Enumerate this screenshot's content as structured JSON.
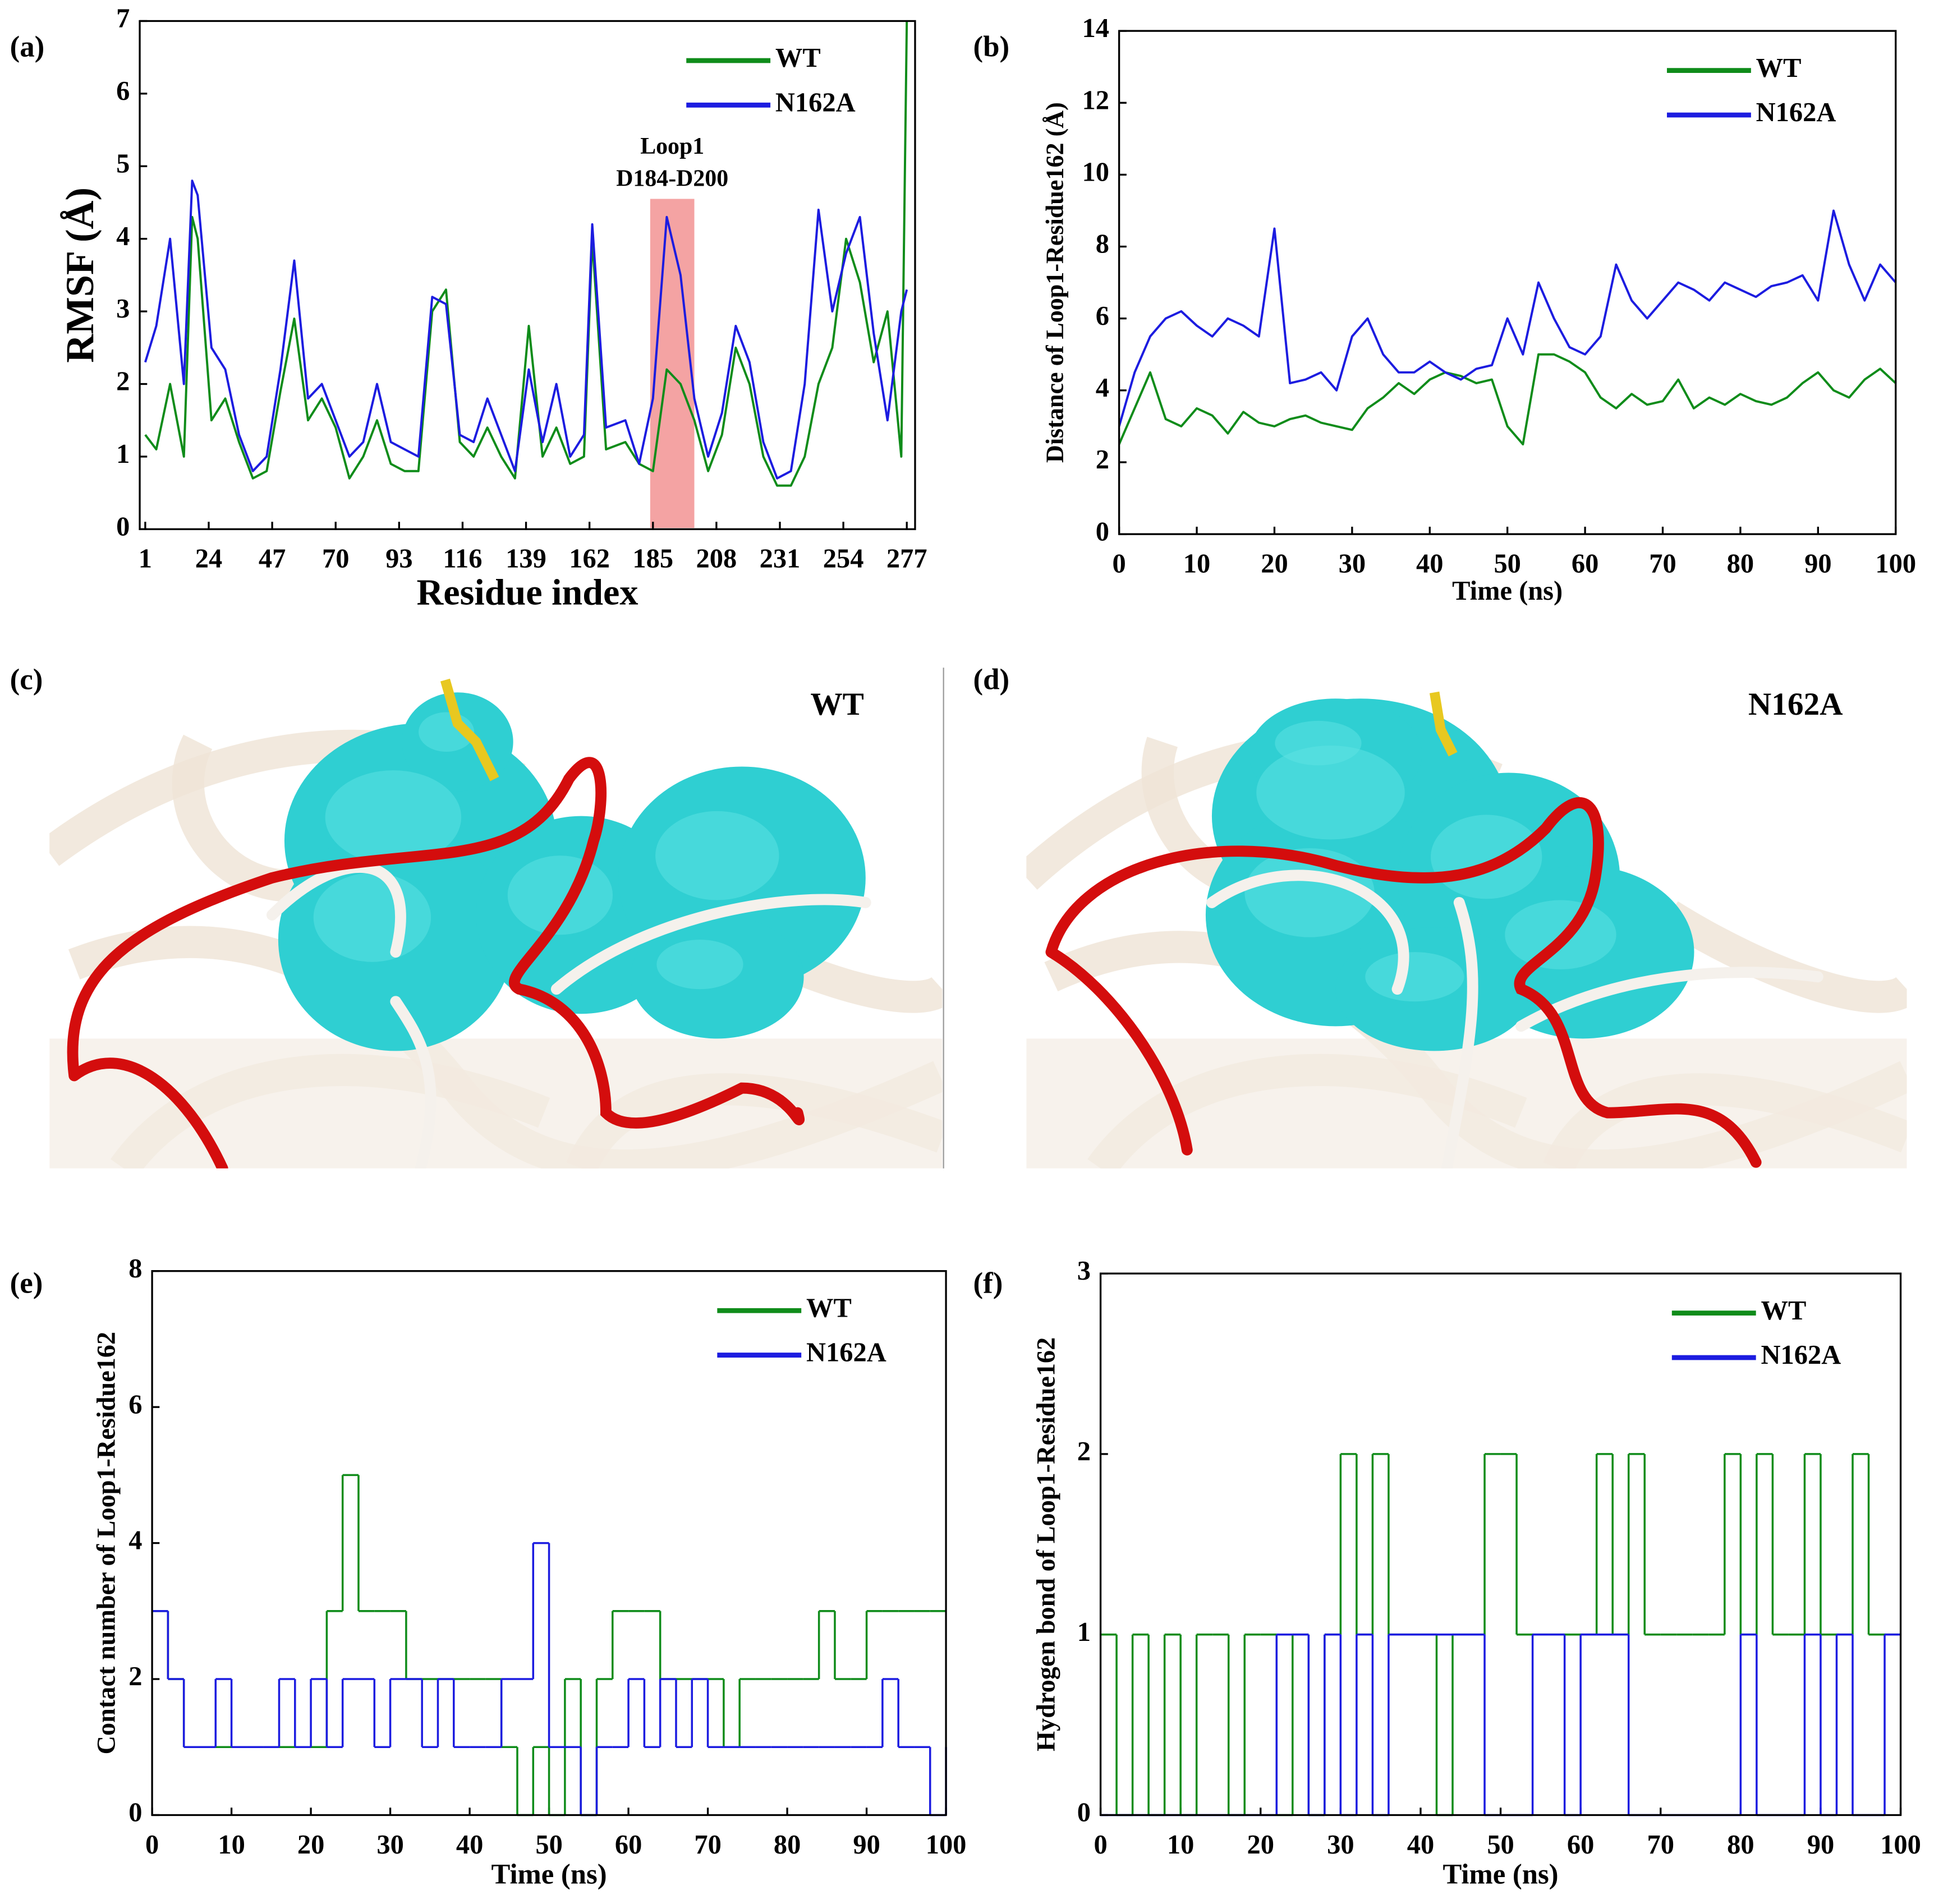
{
  "chart_data": [
    {
      "type": "line",
      "label": "(a)",
      "xlabel": "Residue index",
      "ylabel": "RMSF (Å)",
      "x": [
        1,
        5,
        10,
        15,
        18,
        20,
        25,
        30,
        35,
        40,
        45,
        50,
        55,
        60,
        65,
        70,
        75,
        80,
        85,
        90,
        95,
        100,
        105,
        110,
        115,
        120,
        125,
        130,
        135,
        140,
        145,
        150,
        155,
        160,
        163,
        168,
        175,
        180,
        185,
        190,
        195,
        200,
        205,
        210,
        215,
        220,
        225,
        230,
        235,
        240,
        245,
        250,
        255,
        260,
        265,
        270,
        275,
        277
      ],
      "series": [
        {
          "name": "WT",
          "color": "#0f8c1a",
          "values": [
            1.3,
            1.1,
            2.0,
            1.0,
            4.3,
            4.0,
            1.5,
            1.8,
            1.2,
            0.7,
            0.8,
            1.9,
            2.9,
            1.5,
            1.8,
            1.4,
            0.7,
            1.0,
            1.5,
            0.9,
            0.8,
            0.8,
            3.0,
            3.3,
            1.2,
            1.0,
            1.4,
            1.0,
            0.7,
            2.8,
            1.0,
            1.4,
            0.9,
            1.0,
            4.0,
            1.1,
            1.2,
            0.9,
            0.8,
            2.2,
            2.0,
            1.5,
            0.8,
            1.3,
            2.5,
            2.0,
            1.0,
            0.6,
            0.6,
            1.0,
            2.0,
            2.5,
            4.0,
            3.4,
            2.3,
            3.0,
            1.0,
            7.0
          ]
        },
        {
          "name": "N162A",
          "color": "#1c1ce0",
          "values": [
            2.3,
            2.8,
            4.0,
            2.0,
            4.8,
            4.6,
            2.5,
            2.2,
            1.3,
            0.8,
            1.0,
            2.2,
            3.7,
            1.8,
            2.0,
            1.5,
            1.0,
            1.2,
            2.0,
            1.2,
            1.1,
            1.0,
            3.2,
            3.1,
            1.3,
            1.2,
            1.8,
            1.3,
            0.8,
            2.2,
            1.2,
            2.0,
            1.0,
            1.3,
            4.2,
            1.4,
            1.5,
            0.9,
            1.8,
            4.3,
            3.5,
            1.8,
            1.0,
            1.6,
            2.8,
            2.3,
            1.2,
            0.7,
            0.8,
            2.0,
            4.4,
            3.0,
            3.8,
            4.3,
            2.7,
            1.5,
            3.0,
            3.3
          ]
        }
      ],
      "xlim": [
        -1,
        280
      ],
      "xticks": [
        1,
        24,
        47,
        70,
        93,
        116,
        139,
        162,
        185,
        208,
        231,
        254,
        277
      ],
      "ylim": [
        0,
        7
      ],
      "yticks": [
        0,
        1,
        2,
        3,
        4,
        5,
        6,
        7
      ],
      "highlight": {
        "x": [
          184,
          200
        ],
        "color": "#f4a3a3"
      },
      "annotation": [
        "Loop1",
        "D184-D200"
      ],
      "legend": "upper right",
      "grid": false
    },
    {
      "type": "line",
      "label": "(b)",
      "xlabel": "Time (ns)",
      "ylabel": "Distance of Loop1-Residue162 (Å)",
      "x": [
        0,
        2,
        4,
        6,
        8,
        10,
        12,
        14,
        16,
        18,
        20,
        22,
        24,
        26,
        28,
        30,
        32,
        34,
        36,
        38,
        40,
        42,
        44,
        46,
        48,
        50,
        52,
        54,
        56,
        58,
        60,
        62,
        64,
        66,
        68,
        70,
        72,
        74,
        76,
        78,
        80,
        82,
        84,
        86,
        88,
        90,
        92,
        94,
        96,
        98,
        100
      ],
      "series": [
        {
          "name": "WT",
          "color": "#0f8c1a",
          "values": [
            2.5,
            3.5,
            4.5,
            3.2,
            3.0,
            3.5,
            3.3,
            2.8,
            3.4,
            3.1,
            3.0,
            3.2,
            3.3,
            3.1,
            3.0,
            2.9,
            3.5,
            3.8,
            4.2,
            3.9,
            4.3,
            4.5,
            4.4,
            4.2,
            4.3,
            3.0,
            2.5,
            5.0,
            5.0,
            4.8,
            4.5,
            3.8,
            3.5,
            3.9,
            3.6,
            3.7,
            4.3,
            3.5,
            3.8,
            3.6,
            3.9,
            3.7,
            3.6,
            3.8,
            4.2,
            4.5,
            4.0,
            3.8,
            4.3,
            4.6,
            4.2
          ]
        },
        {
          "name": "N162A",
          "color": "#1c1ce0",
          "values": [
            3.0,
            4.5,
            5.5,
            6.0,
            6.2,
            5.8,
            5.5,
            6.0,
            5.8,
            5.5,
            8.5,
            4.2,
            4.3,
            4.5,
            4.0,
            5.5,
            6.0,
            5.0,
            4.5,
            4.5,
            4.8,
            4.5,
            4.3,
            4.6,
            4.7,
            6.0,
            5.0,
            7.0,
            6.0,
            5.2,
            5.0,
            5.5,
            7.5,
            6.5,
            6.0,
            6.5,
            7.0,
            6.8,
            6.5,
            7.0,
            6.8,
            6.6,
            6.9,
            7.0,
            7.2,
            6.5,
            9.0,
            7.5,
            6.5,
            7.5,
            7.0
          ]
        }
      ],
      "xlim": [
        0,
        100
      ],
      "xticks": [
        0,
        10,
        20,
        30,
        40,
        50,
        60,
        70,
        80,
        90,
        100
      ],
      "ylim": [
        0,
        14
      ],
      "yticks": [
        0,
        2,
        4,
        6,
        8,
        10,
        12,
        14
      ],
      "legend": "upper right",
      "grid": false
    },
    {
      "type": "line",
      "step": true,
      "label": "(e)",
      "xlabel": "Time (ns)",
      "ylabel": "Contact number of Loop1-Residue162",
      "x": [
        0,
        2,
        4,
        6,
        8,
        10,
        12,
        14,
        16,
        18,
        20,
        22,
        24,
        26,
        28,
        30,
        32,
        34,
        36,
        38,
        40,
        42,
        44,
        46,
        48,
        50,
        52,
        54,
        56,
        58,
        60,
        62,
        64,
        66,
        68,
        70,
        72,
        74,
        76,
        78,
        80,
        82,
        84,
        86,
        88,
        90,
        92,
        94,
        96,
        98,
        100
      ],
      "series": [
        {
          "name": "WT",
          "color": "#0f8c1a",
          "values": [
            3,
            2,
            1,
            1,
            1,
            1,
            1,
            1,
            1,
            1,
            1,
            3,
            5,
            3,
            3,
            3,
            2,
            2,
            2,
            2,
            2,
            2,
            1,
            0,
            1,
            0,
            2,
            0,
            2,
            3,
            3,
            3,
            2,
            2,
            2,
            2,
            1,
            2,
            2,
            2,
            2,
            2,
            3,
            2,
            2,
            3,
            3,
            3,
            3,
            3,
            3
          ]
        },
        {
          "name": "N162A",
          "color": "#1c1ce0",
          "values": [
            3,
            2,
            1,
            1,
            2,
            1,
            1,
            1,
            2,
            1,
            2,
            1,
            2,
            2,
            1,
            2,
            2,
            1,
            2,
            1,
            1,
            1,
            2,
            2,
            4,
            1,
            1,
            0,
            1,
            1,
            2,
            1,
            2,
            1,
            2,
            1,
            1,
            1,
            1,
            1,
            1,
            1,
            1,
            1,
            1,
            1,
            2,
            1,
            1,
            0,
            1
          ]
        }
      ],
      "xlim": [
        0,
        100
      ],
      "xticks": [
        0,
        10,
        20,
        30,
        40,
        50,
        60,
        70,
        80,
        90,
        100
      ],
      "ylim": [
        0,
        8
      ],
      "yticks": [
        0,
        2,
        4,
        6,
        8
      ],
      "legend": "upper right",
      "grid": false
    },
    {
      "type": "line",
      "step": true,
      "label": "(f)",
      "xlabel": "Time (ns)",
      "ylabel": "Hydrogen bond of Loop1-Residue162",
      "x": [
        0,
        2,
        4,
        6,
        8,
        10,
        12,
        14,
        16,
        18,
        20,
        22,
        24,
        26,
        28,
        30,
        32,
        34,
        36,
        38,
        40,
        42,
        44,
        46,
        48,
        50,
        52,
        54,
        56,
        58,
        60,
        62,
        64,
        66,
        68,
        70,
        72,
        74,
        76,
        78,
        80,
        82,
        84,
        86,
        88,
        90,
        92,
        94,
        96,
        98,
        100
      ],
      "series": [
        {
          "name": "WT",
          "color": "#0f8c1a",
          "values": [
            1,
            0,
            1,
            0,
            1,
            0,
            1,
            1,
            0,
            1,
            1,
            0,
            1,
            0,
            1,
            2,
            1,
            2,
            1,
            1,
            1,
            0,
            1,
            1,
            2,
            2,
            1,
            1,
            1,
            1,
            1,
            2,
            1,
            2,
            1,
            1,
            1,
            1,
            1,
            2,
            1,
            2,
            1,
            1,
            2,
            1,
            1,
            2,
            1,
            1,
            1
          ]
        },
        {
          "name": "N162A",
          "color": "#1c1ce0",
          "values": [
            0,
            0,
            0,
            0,
            0,
            0,
            0,
            0,
            0,
            0,
            0,
            1,
            1,
            0,
            1,
            0,
            1,
            0,
            1,
            1,
            1,
            1,
            1,
            1,
            0,
            0,
            0,
            1,
            1,
            0,
            1,
            1,
            1,
            0,
            0,
            0,
            0,
            0,
            0,
            0,
            1,
            0,
            0,
            0,
            1,
            0,
            1,
            0,
            0,
            1,
            1
          ]
        }
      ],
      "xlim": [
        0,
        100
      ],
      "xticks": [
        0,
        10,
        20,
        30,
        40,
        50,
        60,
        70,
        80,
        90,
        100
      ],
      "ylim": [
        0,
        3
      ],
      "yticks": [
        0,
        1,
        2,
        3
      ],
      "legend": "upper right",
      "grid": false
    }
  ],
  "images": [
    {
      "label": "(c)",
      "title": "WT"
    },
    {
      "label": "(d)",
      "title": "N162A"
    }
  ]
}
